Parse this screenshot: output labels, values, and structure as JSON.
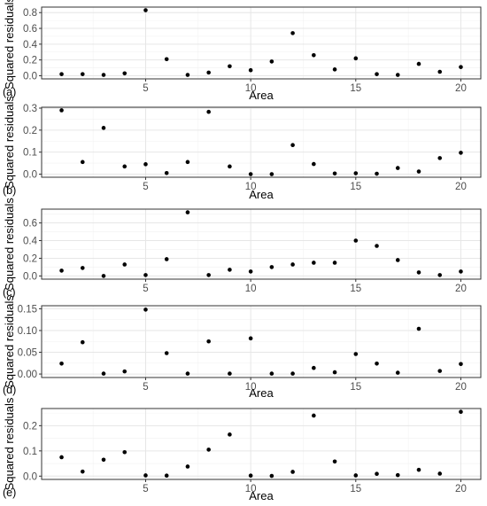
{
  "chart_data": [
    {
      "type": "scatter",
      "panel_label": "(a)",
      "xlabel": "Area",
      "ylabel": "Squared residuals",
      "x": [
        1,
        2,
        3,
        4,
        5,
        6,
        7,
        8,
        9,
        10,
        11,
        12,
        13,
        14,
        15,
        16,
        17,
        18,
        19,
        20
      ],
      "y": [
        0.02,
        0.02,
        0.01,
        0.03,
        0.83,
        0.21,
        0.01,
        0.04,
        0.12,
        0.07,
        0.18,
        0.54,
        0.26,
        0.08,
        0.22,
        0.02,
        0.01,
        0.15,
        0.05,
        0.11
      ],
      "xlim": [
        0.05,
        20.95
      ],
      "ylim": [
        -0.04,
        0.87
      ],
      "xticks": [
        5,
        10,
        15,
        20
      ],
      "yticks": [
        0.0,
        0.2,
        0.4,
        0.6,
        0.8
      ],
      "ytick_labels": [
        "0.0",
        "0.2",
        "0.4",
        "0.6",
        "0.8"
      ],
      "grid": true
    },
    {
      "type": "scatter",
      "panel_label": "(b)",
      "xlabel": "Area",
      "ylabel": "Squared residuals",
      "x": [
        1,
        2,
        3,
        4,
        5,
        6,
        7,
        8,
        9,
        10,
        11,
        12,
        13,
        14,
        15,
        16,
        17,
        18,
        19,
        20
      ],
      "y": [
        0.29,
        0.055,
        0.21,
        0.035,
        0.045,
        0.005,
        0.055,
        0.283,
        0.035,
        0.0,
        0.0,
        0.132,
        0.046,
        0.003,
        0.004,
        0.002,
        0.028,
        0.012,
        0.073,
        0.097
      ],
      "xlim": [
        0.05,
        20.95
      ],
      "ylim": [
        -0.014,
        0.304
      ],
      "xticks": [
        5,
        10,
        15,
        20
      ],
      "yticks": [
        0.0,
        0.1,
        0.2,
        0.3
      ],
      "ytick_labels": [
        "0.0",
        "0.1",
        "0.2",
        "0.3"
      ],
      "grid": true
    },
    {
      "type": "scatter",
      "panel_label": "(c)",
      "xlabel": "",
      "ylabel": "Squared residuals",
      "x": [
        1,
        2,
        3,
        4,
        5,
        6,
        7,
        8,
        9,
        10,
        11,
        12,
        13,
        14,
        15,
        16,
        17,
        18,
        19,
        20
      ],
      "y": [
        0.06,
        0.09,
        0.0,
        0.13,
        0.01,
        0.19,
        0.72,
        0.01,
        0.07,
        0.05,
        0.1,
        0.13,
        0.15,
        0.15,
        0.4,
        0.34,
        0.18,
        0.04,
        0.01,
        0.05
      ],
      "xlim": [
        0.05,
        20.95
      ],
      "ylim": [
        -0.036,
        0.756
      ],
      "xticks": [
        5,
        10,
        15,
        20
      ],
      "yticks": [
        0.0,
        0.2,
        0.4,
        0.6
      ],
      "ytick_labels": [
        "0.0",
        "0.2",
        "0.4",
        "0.6"
      ],
      "grid": true
    },
    {
      "type": "scatter",
      "panel_label": "(d)",
      "xlabel": "Area",
      "ylabel": "Squared residuals",
      "x": [
        1,
        2,
        3,
        4,
        5,
        6,
        7,
        8,
        9,
        10,
        11,
        12,
        13,
        14,
        15,
        16,
        17,
        18,
        19,
        20
      ],
      "y": [
        0.024,
        0.073,
        0.001,
        0.006,
        0.148,
        0.048,
        0.001,
        0.075,
        0.001,
        0.082,
        0.001,
        0.001,
        0.014,
        0.004,
        0.046,
        0.024,
        0.003,
        0.104,
        0.007,
        0.023
      ],
      "xlim": [
        0.05,
        20.95
      ],
      "ylim": [
        -0.008,
        0.157
      ],
      "xticks": [
        5,
        10,
        15,
        20
      ],
      "yticks": [
        0.0,
        0.05,
        0.1,
        0.15
      ],
      "ytick_labels": [
        "0.00",
        "0.05",
        "0.10",
        "0.15"
      ],
      "grid": true
    },
    {
      "type": "scatter",
      "panel_label": "(e)",
      "xlabel": "Area",
      "ylabel": "Squared residuals",
      "x": [
        1,
        2,
        3,
        4,
        5,
        6,
        7,
        8,
        9,
        10,
        11,
        12,
        13,
        14,
        15,
        16,
        17,
        18,
        19,
        20
      ],
      "y": [
        0.075,
        0.018,
        0.065,
        0.095,
        0.003,
        0.002,
        0.038,
        0.105,
        0.165,
        0.002,
        0.001,
        0.017,
        0.24,
        0.058,
        0.003,
        0.009,
        0.004,
        0.025,
        0.01,
        0.255
      ],
      "xlim": [
        0.05,
        20.95
      ],
      "ylim": [
        -0.013,
        0.268
      ],
      "xticks": [
        5,
        10,
        15,
        20
      ],
      "yticks": [
        0.0,
        0.1,
        0.2
      ],
      "ytick_labels": [
        "0.0",
        "0.1",
        "0.2"
      ],
      "grid": true
    }
  ]
}
